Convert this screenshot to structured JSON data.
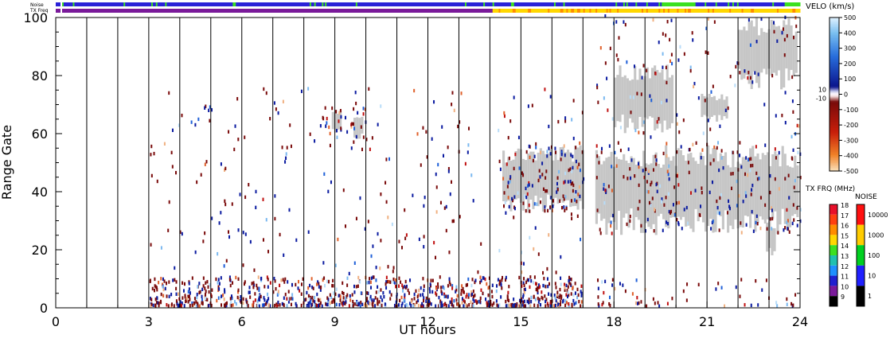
{
  "chart_data": {
    "type": "scatter",
    "xlabel": "UT hours",
    "ylabel": "Range Gate",
    "xlim": [
      0,
      24
    ],
    "ylim": [
      0,
      100
    ],
    "x_ticks": [
      "0",
      "3",
      "6",
      "9",
      "12",
      "15",
      "18",
      "21",
      "24"
    ],
    "y_ticks": [
      "0",
      "20",
      "40",
      "60",
      "80",
      "100"
    ],
    "strip_labels": {
      "noise": "Noise",
      "freq": "TX Freq"
    },
    "vertical_lines": [
      1,
      2,
      3,
      4,
      5,
      6,
      7,
      8,
      9,
      10,
      11,
      12,
      13,
      14,
      15,
      16,
      17,
      18,
      19,
      20,
      21,
      22,
      23
    ],
    "velo_scale": {
      "title": "VELO (km/s)",
      "labels": [
        "500",
        "400",
        "300",
        "200",
        "100",
        "0",
        "-100",
        "-200",
        "-300",
        "-400",
        "-500"
      ],
      "small_labels": [
        "10",
        "-10"
      ]
    },
    "freq_scale": {
      "title": "TX FRQ (MHz)",
      "labels": [
        "18",
        "17",
        "16",
        "15",
        "14",
        "13",
        "12",
        "11",
        "10",
        "9"
      ],
      "colors": [
        "#e8102a",
        "#ff4010",
        "#ff8c00",
        "#ffd700",
        "#3ce020",
        "#20c0b0",
        "#1f8fff",
        "#2020d0",
        "#7a1a9a",
        "#000000"
      ]
    },
    "noise_scale": {
      "title": "NOISE",
      "labels": [
        "10000",
        "1000",
        "100",
        "10",
        "1"
      ],
      "colors": [
        "#ff1010",
        "#ffcc00",
        "#00d020",
        "#2020ff",
        "#000000"
      ]
    },
    "colors": {
      "gray": "#c6c6c6",
      "blue": [
        "#0a1aa0",
        "#1e5fd8",
        "#7ab8f0",
        "#b8dcf8"
      ],
      "red": [
        "#7a0a0a",
        "#c01010",
        "#e0602a",
        "#f0b080"
      ],
      "strip_blue": "#2a22d8",
      "strip_green": "#3ce020",
      "strip_purple": "#7a1a9a",
      "strip_yellow": "#ffd700",
      "strip_orange": "#ff8c00"
    },
    "gray_regions": [
      {
        "x": [
          14.4,
          17.0
        ],
        "y": [
          32,
          56
        ]
      },
      {
        "x": [
          17.4,
          23.9
        ],
        "y": [
          25,
          56
        ]
      },
      {
        "x": [
          18.0,
          19.9
        ],
        "y": [
          60,
          84
        ]
      },
      {
        "x": [
          20.8,
          21.6
        ],
        "y": [
          64,
          74
        ]
      },
      {
        "x": [
          22.0,
          23.9
        ],
        "y": [
          75,
          100
        ]
      },
      {
        "x": [
          22.9,
          23.2
        ],
        "y": [
          18,
          30
        ]
      },
      {
        "x": [
          8.9,
          9.2
        ],
        "y": [
          60,
          68
        ]
      },
      {
        "x": [
          9.6,
          9.9
        ],
        "y": [
          58,
          66
        ]
      }
    ],
    "scatter_regions": [
      {
        "x": [
          3.0,
          17.0
        ],
        "y": [
          0,
          10
        ],
        "n": 900
      },
      {
        "x": [
          3.0,
          17.0
        ],
        "y": [
          10,
          75
        ],
        "n": 260
      },
      {
        "x": [
          14.4,
          17.0
        ],
        "y": [
          32,
          56
        ],
        "n": 110
      },
      {
        "x": [
          17.4,
          24.0
        ],
        "y": [
          25,
          56
        ],
        "n": 230
      },
      {
        "x": [
          17.4,
          24.0
        ],
        "y": [
          56,
          100
        ],
        "n": 130
      },
      {
        "x": [
          17.4,
          24.0
        ],
        "y": [
          0,
          10
        ],
        "n": 60
      },
      {
        "x": [
          8.5,
          10.0
        ],
        "y": [
          58,
          70
        ],
        "n": 30
      }
    ]
  }
}
